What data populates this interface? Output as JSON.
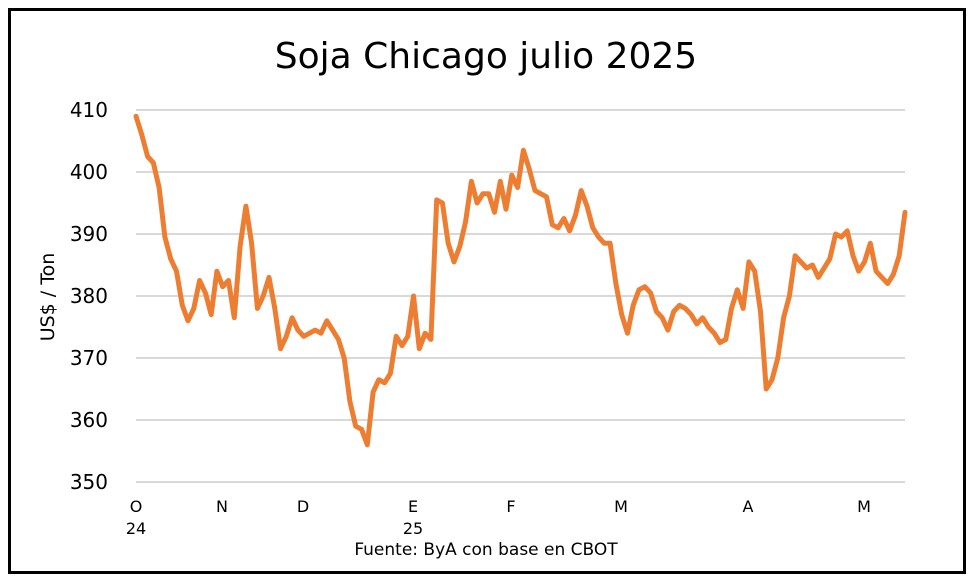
{
  "chart_data": {
    "type": "line",
    "title": "Soja Chicago julio 2025",
    "xlabel": "",
    "ylabel": "US$ / Ton",
    "source": "Fuente: ByA con base en CBOT",
    "ylim": [
      350,
      410
    ],
    "yticks": [
      "350",
      "360",
      "370",
      "380",
      "390",
      "400",
      "410"
    ],
    "x_tick_labels": [
      {
        "label": "O",
        "sub": "24"
      },
      {
        "label": "N",
        "sub": ""
      },
      {
        "label": "D",
        "sub": ""
      },
      {
        "label": "E",
        "sub": "25"
      },
      {
        "label": "F",
        "sub": ""
      },
      {
        "label": "M",
        "sub": ""
      },
      {
        "label": "A",
        "sub": ""
      },
      {
        "label": "M",
        "sub": ""
      }
    ],
    "grid": true,
    "color": "#ED7D31",
    "series": [
      {
        "values": [
          409.0,
          406.0,
          402.5,
          401.5,
          397.5,
          389.5,
          386.0,
          384.0,
          378.5,
          376.0,
          378.0,
          382.5,
          380.5,
          377.0,
          384.0,
          381.5,
          382.5,
          376.5,
          388.0,
          394.5,
          388.5,
          378.0,
          380.0,
          383.0,
          378.0,
          371.5,
          373.5,
          376.5,
          374.5,
          373.5,
          374.0,
          374.5,
          374.0,
          376.0,
          374.5,
          373.0,
          370.0,
          363.0,
          359.0,
          358.5,
          356.0,
          364.5,
          366.5,
          366.0,
          367.5,
          373.5,
          372.0,
          373.5,
          380.0,
          371.5,
          374.0,
          373.0,
          395.5,
          395.0,
          388.5,
          385.5,
          388.0,
          392.0,
          398.5,
          395.0,
          396.5,
          396.5,
          393.5,
          398.5,
          394.0,
          399.5,
          397.5,
          403.5,
          400.5,
          397.0,
          396.5,
          396.0,
          391.5,
          391.0,
          392.5,
          390.5,
          393.0,
          397.0,
          394.5,
          391.0,
          389.5,
          388.5,
          388.5,
          382.0,
          377.0,
          374.0,
          378.5,
          381.0,
          381.5,
          380.5,
          377.5,
          376.5,
          374.5,
          377.5,
          378.5,
          378.0,
          377.0,
          375.5,
          376.5,
          375.0,
          374.0,
          372.5,
          373.0,
          378.0,
          381.0,
          378.0,
          385.5,
          384.0,
          377.5,
          365.0,
          366.5,
          370.0,
          376.5,
          380.0,
          386.5,
          385.5,
          384.5,
          385.0,
          383.0,
          384.5,
          386.0,
          390.0,
          389.5,
          390.5,
          386.5,
          384.0,
          385.5,
          388.5,
          384.0,
          383.0,
          382.0,
          383.5,
          386.5,
          393.5
        ]
      }
    ]
  }
}
